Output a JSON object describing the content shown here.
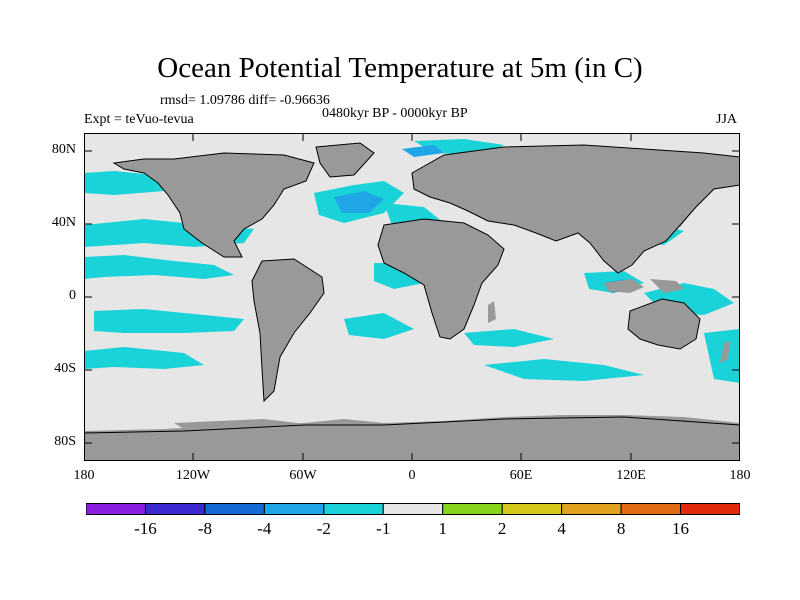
{
  "title": "Ocean Potential Temperature at 5m (in C)",
  "stats": "rmsd= 1.09786  diff= -0.96636",
  "experiment": "Expt = teVuo-tevua",
  "period": "0480kyr BP - 0000kyr BP",
  "season": "JJA",
  "lat_labels": [
    "80N",
    "40N",
    "0",
    "40S",
    "80S"
  ],
  "lon_labels": [
    "180",
    "120W",
    "60W",
    "0",
    "60E",
    "120E",
    "180"
  ],
  "colors": {
    "land": "#999999",
    "neutral": "#e6e6e6",
    "cyan": "#19d3d8",
    "lightblue": "#1fa6e6",
    "blue": "#1569d6"
  },
  "colorbar": {
    "colors": [
      "#8a1ee0",
      "#3a2ad0",
      "#1569d6",
      "#1fa6e6",
      "#19d3d8",
      "#e6e6e6",
      "#88d41c",
      "#d6c81a",
      "#e0a21e",
      "#e06a12",
      "#e02a0c"
    ],
    "labels": [
      "-16",
      "-8",
      "-4",
      "-2",
      "-1",
      "1",
      "2",
      "4",
      "8",
      "16"
    ]
  }
}
